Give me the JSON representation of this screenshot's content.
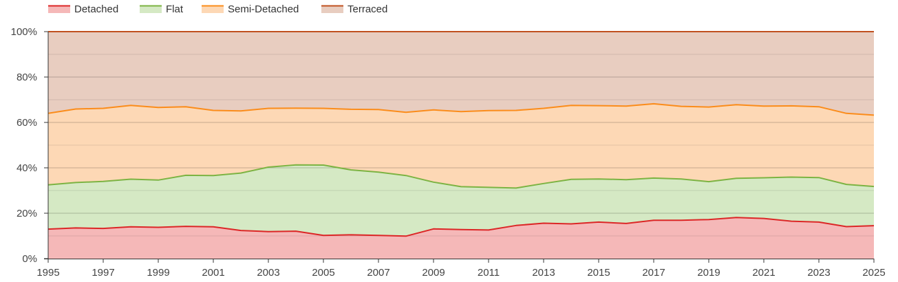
{
  "chart_data": {
    "type": "area",
    "stacked": true,
    "x": [
      1995,
      1996,
      1997,
      1998,
      1999,
      2000,
      2001,
      2002,
      2003,
      2004,
      2005,
      2006,
      2007,
      2008,
      2009,
      2010,
      2011,
      2012,
      2013,
      2014,
      2015,
      2016,
      2017,
      2018,
      2019,
      2020,
      2021,
      2022,
      2023,
      2024,
      2025
    ],
    "x_tick_labels": [
      "1995",
      "1997",
      "1999",
      "2001",
      "2003",
      "2005",
      "2007",
      "2009",
      "2011",
      "2013",
      "2015",
      "2017",
      "2019",
      "2021",
      "2023",
      "2025"
    ],
    "y_tick_labels": [
      "0%",
      "20%",
      "40%",
      "60%",
      "80%",
      "100%"
    ],
    "ylim": [
      0,
      100
    ],
    "y_unit": "%",
    "grid": true,
    "legend_position": "top-left",
    "series": [
      {
        "name": "Detached",
        "line_color": "#dc2626",
        "fill_color": "#f5b8b8",
        "values": [
          13.0,
          13.5,
          13.3,
          14.0,
          13.8,
          14.2,
          14.0,
          12.4,
          11.9,
          12.1,
          10.2,
          10.5,
          10.2,
          9.9,
          13.1,
          12.8,
          12.6,
          14.6,
          15.6,
          15.3,
          16.1,
          15.5,
          16.9,
          16.9,
          17.2,
          18.1,
          17.7,
          16.5,
          16.1,
          14.1,
          14.5
        ]
      },
      {
        "name": "Flat",
        "line_color": "#7cb342",
        "fill_color": "#d5e9c4",
        "values": [
          19.5,
          20.0,
          20.7,
          21.0,
          20.8,
          22.5,
          22.6,
          25.3,
          28.4,
          29.2,
          31.0,
          28.6,
          27.9,
          26.7,
          20.6,
          18.9,
          18.8,
          16.5,
          17.5,
          19.6,
          19.0,
          19.3,
          18.6,
          18.2,
          16.7,
          17.3,
          17.9,
          19.4,
          19.6,
          18.6,
          17.3
        ]
      },
      {
        "name": "Semi-Detached",
        "line_color": "#fb8c1a",
        "fill_color": "#fdd8b5",
        "values": [
          31.5,
          32.4,
          32.2,
          32.5,
          32.0,
          30.2,
          28.7,
          27.4,
          25.9,
          25.0,
          25.0,
          26.7,
          27.6,
          27.9,
          31.8,
          33.1,
          33.8,
          34.2,
          33.1,
          32.6,
          32.3,
          32.4,
          32.7,
          32.0,
          32.9,
          32.4,
          31.6,
          31.4,
          31.2,
          31.3,
          31.4
        ]
      },
      {
        "name": "Terraced",
        "line_color": "#c0501f",
        "fill_color": "#e8cdc0",
        "values": [
          36.0,
          34.1,
          33.8,
          32.5,
          33.4,
          33.1,
          34.7,
          34.9,
          33.8,
          33.7,
          33.8,
          34.2,
          34.3,
          35.5,
          34.5,
          35.2,
          34.8,
          34.7,
          33.8,
          32.5,
          32.6,
          32.8,
          31.8,
          32.9,
          33.2,
          32.2,
          32.8,
          32.7,
          33.1,
          36.0,
          36.8
        ]
      }
    ]
  }
}
